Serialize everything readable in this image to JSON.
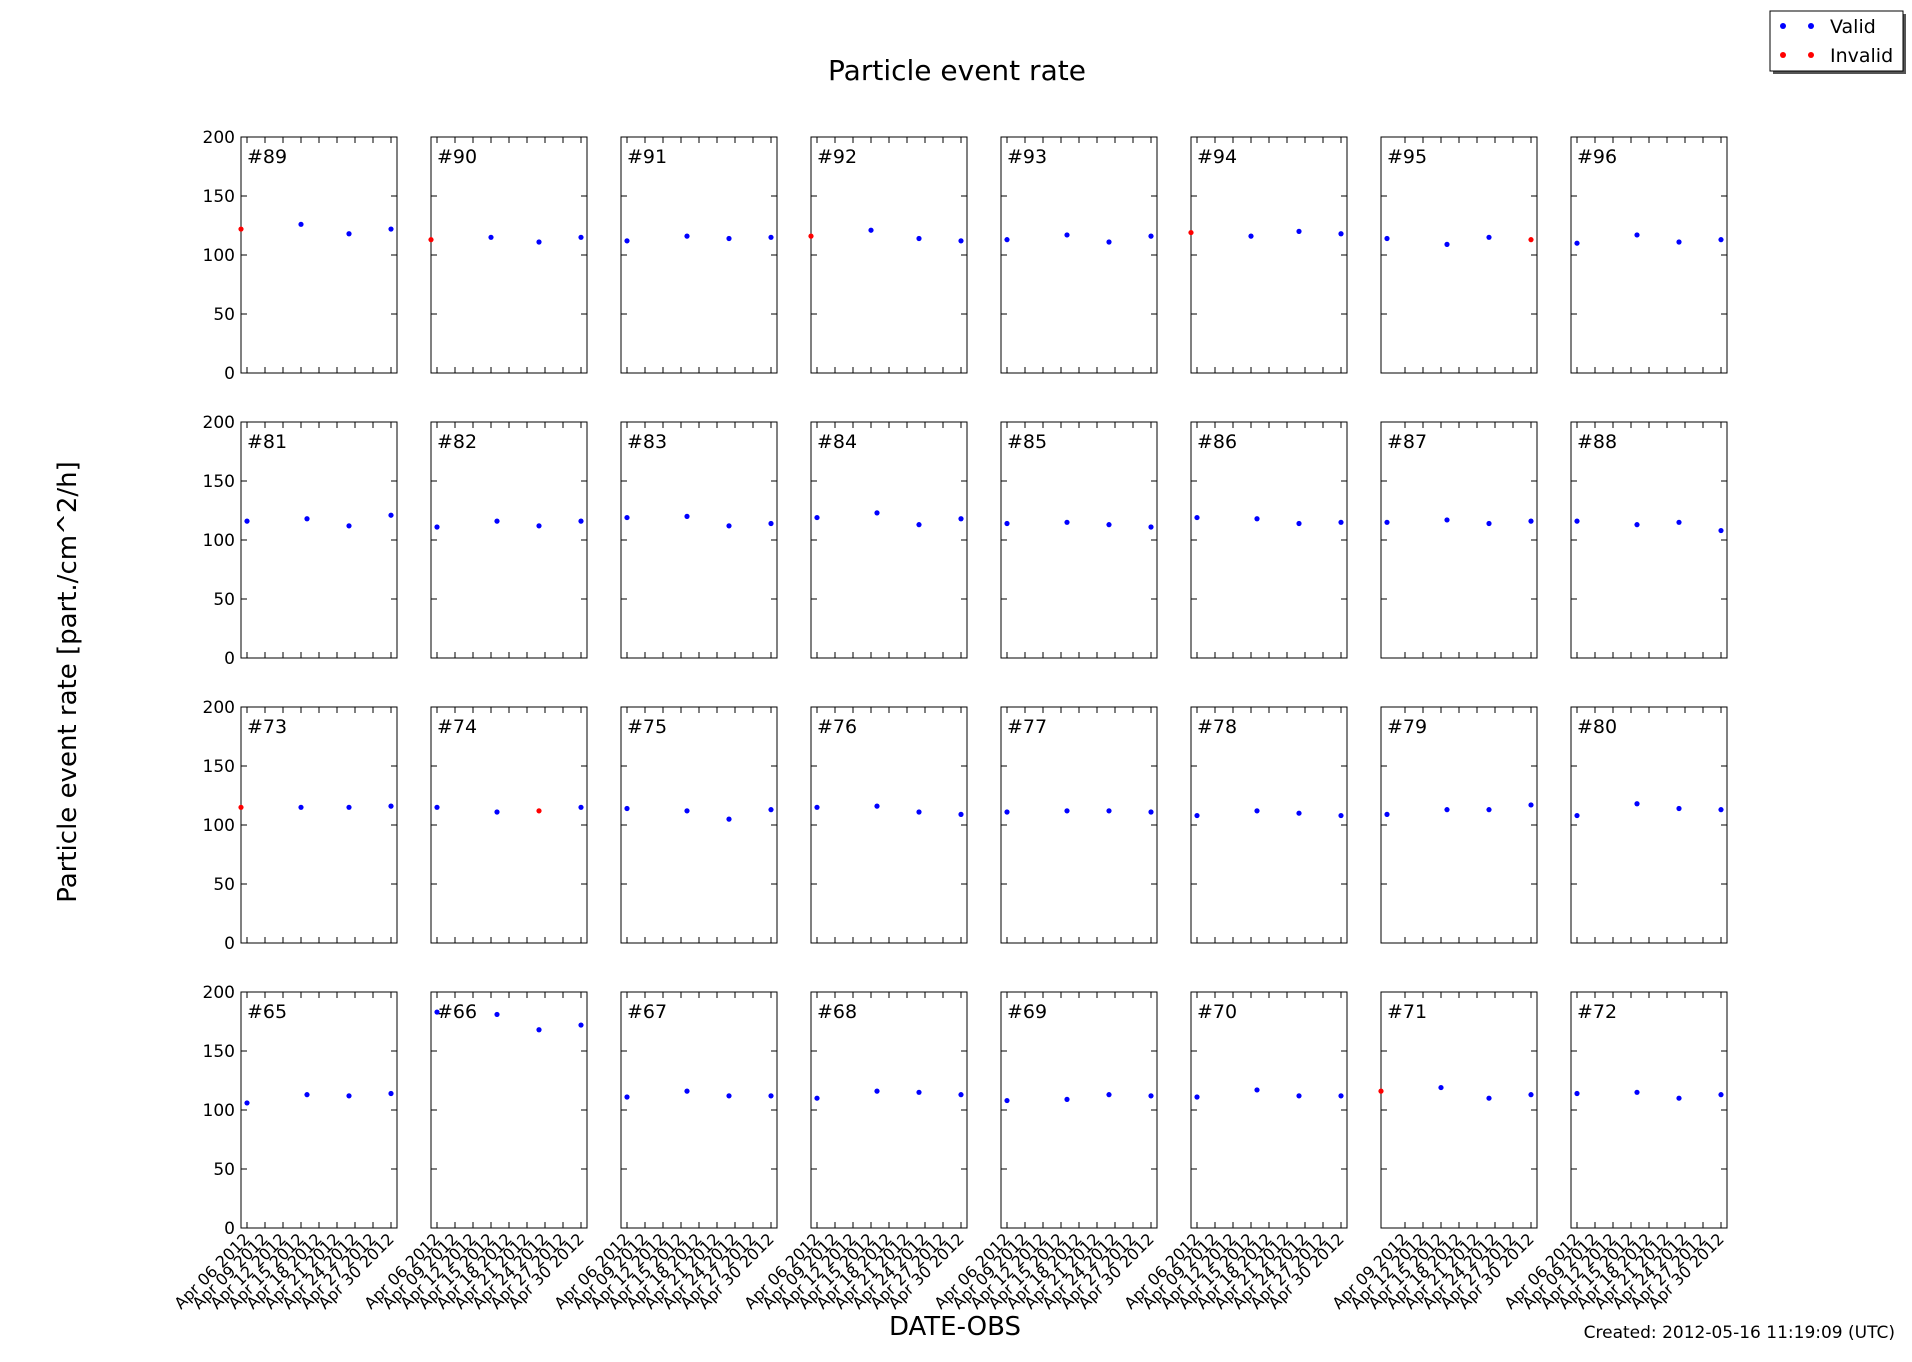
{
  "chart_data": {
    "type": "scatter",
    "title": "Particle event rate",
    "ylabel": "Particle event rate [part./cm^2/h]",
    "xlabel": "DATE-OBS",
    "footer": "Created: 2012-05-16 11:19:09 (UTC)",
    "legend": {
      "placement": "top-right",
      "entries": [
        {
          "label": "Valid",
          "color": "#0000ff"
        },
        {
          "label": "Invalid",
          "color": "#ff0000"
        }
      ]
    },
    "ylim": [
      0,
      200
    ],
    "yticks": [
      "0",
      "50",
      "100",
      "150",
      "200"
    ],
    "grid": false,
    "xrange": [
      "2012-04-05",
      "2012-05-01"
    ],
    "bottom_row_xticks": [
      {
        "dates": [
          "2012-04-06",
          "2012-04-09",
          "2012-04-12",
          "2012-04-15",
          "2012-04-18",
          "2012-04-21",
          "2012-04-24",
          "2012-04-27",
          "2012-04-30"
        ],
        "labels": [
          "Apr 06 2012",
          "Apr 09 2012",
          "Apr 12 2012",
          "Apr 15 2012",
          "Apr 18 2012",
          "Apr 21 2012",
          "Apr 24 2012",
          "Apr 27 2012",
          "Apr 30 2012"
        ]
      },
      {
        "dates": [
          "2012-04-09",
          "2012-04-12",
          "2012-04-15",
          "2012-04-18",
          "2012-04-21",
          "2012-04-24",
          "2012-04-27",
          "2012-04-30"
        ],
        "labels": [
          "Apr 09 2012",
          "Apr 12 2012",
          "Apr 15 2012",
          "Apr 18 2012",
          "Apr 21 2012",
          "Apr 24 2012",
          "Apr 27 2012",
          "Apr 30 2012"
        ]
      }
    ],
    "bottom_row_xtick_set": [
      0,
      0,
      0,
      0,
      0,
      0,
      1,
      0
    ],
    "point_dates": [
      "2012-04-05",
      "2012-04-16",
      "2012-04-24",
      "2012-05-01"
    ],
    "panels": [
      {
        "label": "#89",
        "points": [
          {
            "date": "2012-04-05",
            "y": 122,
            "status": "Invalid"
          },
          {
            "date": "2012-04-15",
            "y": 126,
            "status": "Valid"
          },
          {
            "date": "2012-04-23",
            "y": 118,
            "status": "Valid"
          },
          {
            "date": "2012-04-30",
            "y": 122,
            "status": "Valid"
          }
        ]
      },
      {
        "label": "#90",
        "points": [
          {
            "date": "2012-04-05",
            "y": 113,
            "status": "Invalid"
          },
          {
            "date": "2012-04-15",
            "y": 115,
            "status": "Valid"
          },
          {
            "date": "2012-04-23",
            "y": 111,
            "status": "Valid"
          },
          {
            "date": "2012-04-30",
            "y": 115,
            "status": "Valid"
          }
        ]
      },
      {
        "label": "#91",
        "points": [
          {
            "date": "2012-04-06",
            "y": 112,
            "status": "Valid"
          },
          {
            "date": "2012-04-16",
            "y": 116,
            "status": "Valid"
          },
          {
            "date": "2012-04-23",
            "y": 114,
            "status": "Valid"
          },
          {
            "date": "2012-04-30",
            "y": 115,
            "status": "Valid"
          }
        ]
      },
      {
        "label": "#92",
        "points": [
          {
            "date": "2012-04-05",
            "y": 116,
            "status": "Invalid"
          },
          {
            "date": "2012-04-15",
            "y": 121,
            "status": "Valid"
          },
          {
            "date": "2012-04-23",
            "y": 114,
            "status": "Valid"
          },
          {
            "date": "2012-04-30",
            "y": 112,
            "status": "Valid"
          }
        ]
      },
      {
        "label": "#93",
        "points": [
          {
            "date": "2012-04-06",
            "y": 113,
            "status": "Valid"
          },
          {
            "date": "2012-04-16",
            "y": 117,
            "status": "Valid"
          },
          {
            "date": "2012-04-23",
            "y": 111,
            "status": "Valid"
          },
          {
            "date": "2012-04-30",
            "y": 116,
            "status": "Valid"
          }
        ]
      },
      {
        "label": "#94",
        "points": [
          {
            "date": "2012-04-05",
            "y": 119,
            "status": "Invalid"
          },
          {
            "date": "2012-04-15",
            "y": 116,
            "status": "Valid"
          },
          {
            "date": "2012-04-23",
            "y": 120,
            "status": "Valid"
          },
          {
            "date": "2012-04-30",
            "y": 118,
            "status": "Valid"
          }
        ]
      },
      {
        "label": "#95",
        "points": [
          {
            "date": "2012-04-06",
            "y": 114,
            "status": "Valid"
          },
          {
            "date": "2012-04-16",
            "y": 109,
            "status": "Valid"
          },
          {
            "date": "2012-04-23",
            "y": 115,
            "status": "Valid"
          },
          {
            "date": "2012-04-30",
            "y": 113,
            "status": "Invalid"
          }
        ]
      },
      {
        "label": "#96",
        "points": [
          {
            "date": "2012-04-06",
            "y": 110,
            "status": "Valid"
          },
          {
            "date": "2012-04-16",
            "y": 117,
            "status": "Valid"
          },
          {
            "date": "2012-04-23",
            "y": 111,
            "status": "Valid"
          },
          {
            "date": "2012-04-30",
            "y": 113,
            "status": "Valid"
          }
        ]
      },
      {
        "label": "#81",
        "points": [
          {
            "date": "2012-04-06",
            "y": 116,
            "status": "Valid"
          },
          {
            "date": "2012-04-16",
            "y": 118,
            "status": "Valid"
          },
          {
            "date": "2012-04-23",
            "y": 112,
            "status": "Valid"
          },
          {
            "date": "2012-04-30",
            "y": 121,
            "status": "Valid"
          }
        ]
      },
      {
        "label": "#82",
        "points": [
          {
            "date": "2012-04-06",
            "y": 111,
            "status": "Valid"
          },
          {
            "date": "2012-04-16",
            "y": 116,
            "status": "Valid"
          },
          {
            "date": "2012-04-23",
            "y": 112,
            "status": "Valid"
          },
          {
            "date": "2012-04-30",
            "y": 116,
            "status": "Valid"
          }
        ]
      },
      {
        "label": "#83",
        "points": [
          {
            "date": "2012-04-06",
            "y": 119,
            "status": "Valid"
          },
          {
            "date": "2012-04-16",
            "y": 120,
            "status": "Valid"
          },
          {
            "date": "2012-04-23",
            "y": 112,
            "status": "Valid"
          },
          {
            "date": "2012-04-30",
            "y": 114,
            "status": "Valid"
          }
        ]
      },
      {
        "label": "#84",
        "points": [
          {
            "date": "2012-04-06",
            "y": 119,
            "status": "Valid"
          },
          {
            "date": "2012-04-16",
            "y": 123,
            "status": "Valid"
          },
          {
            "date": "2012-04-23",
            "y": 113,
            "status": "Valid"
          },
          {
            "date": "2012-04-30",
            "y": 118,
            "status": "Valid"
          }
        ]
      },
      {
        "label": "#85",
        "points": [
          {
            "date": "2012-04-06",
            "y": 114,
            "status": "Valid"
          },
          {
            "date": "2012-04-16",
            "y": 115,
            "status": "Valid"
          },
          {
            "date": "2012-04-23",
            "y": 113,
            "status": "Valid"
          },
          {
            "date": "2012-04-30",
            "y": 111,
            "status": "Valid"
          }
        ]
      },
      {
        "label": "#86",
        "points": [
          {
            "date": "2012-04-06",
            "y": 119,
            "status": "Valid"
          },
          {
            "date": "2012-04-16",
            "y": 118,
            "status": "Valid"
          },
          {
            "date": "2012-04-23",
            "y": 114,
            "status": "Valid"
          },
          {
            "date": "2012-04-30",
            "y": 115,
            "status": "Valid"
          }
        ]
      },
      {
        "label": "#87",
        "points": [
          {
            "date": "2012-04-06",
            "y": 115,
            "status": "Valid"
          },
          {
            "date": "2012-04-16",
            "y": 117,
            "status": "Valid"
          },
          {
            "date": "2012-04-23",
            "y": 114,
            "status": "Valid"
          },
          {
            "date": "2012-04-30",
            "y": 116,
            "status": "Valid"
          }
        ]
      },
      {
        "label": "#88",
        "points": [
          {
            "date": "2012-04-06",
            "y": 116,
            "status": "Valid"
          },
          {
            "date": "2012-04-16",
            "y": 113,
            "status": "Valid"
          },
          {
            "date": "2012-04-23",
            "y": 115,
            "status": "Valid"
          },
          {
            "date": "2012-04-30",
            "y": 108,
            "status": "Valid"
          }
        ]
      },
      {
        "label": "#73",
        "points": [
          {
            "date": "2012-04-05",
            "y": 115,
            "status": "Invalid"
          },
          {
            "date": "2012-04-15",
            "y": 115,
            "status": "Valid"
          },
          {
            "date": "2012-04-23",
            "y": 115,
            "status": "Valid"
          },
          {
            "date": "2012-04-30",
            "y": 116,
            "status": "Valid"
          }
        ]
      },
      {
        "label": "#74",
        "points": [
          {
            "date": "2012-04-06",
            "y": 115,
            "status": "Valid"
          },
          {
            "date": "2012-04-16",
            "y": 111,
            "status": "Valid"
          },
          {
            "date": "2012-04-23",
            "y": 112,
            "status": "Invalid"
          },
          {
            "date": "2012-04-30",
            "y": 115,
            "status": "Valid"
          }
        ]
      },
      {
        "label": "#75",
        "points": [
          {
            "date": "2012-04-06",
            "y": 114,
            "status": "Valid"
          },
          {
            "date": "2012-04-16",
            "y": 112,
            "status": "Valid"
          },
          {
            "date": "2012-04-23",
            "y": 105,
            "status": "Valid"
          },
          {
            "date": "2012-04-30",
            "y": 113,
            "status": "Valid"
          }
        ]
      },
      {
        "label": "#76",
        "points": [
          {
            "date": "2012-04-06",
            "y": 115,
            "status": "Valid"
          },
          {
            "date": "2012-04-16",
            "y": 116,
            "status": "Valid"
          },
          {
            "date": "2012-04-23",
            "y": 111,
            "status": "Valid"
          },
          {
            "date": "2012-04-30",
            "y": 109,
            "status": "Valid"
          }
        ]
      },
      {
        "label": "#77",
        "points": [
          {
            "date": "2012-04-06",
            "y": 111,
            "status": "Valid"
          },
          {
            "date": "2012-04-16",
            "y": 112,
            "status": "Valid"
          },
          {
            "date": "2012-04-23",
            "y": 112,
            "status": "Valid"
          },
          {
            "date": "2012-04-30",
            "y": 111,
            "status": "Valid"
          }
        ]
      },
      {
        "label": "#78",
        "points": [
          {
            "date": "2012-04-06",
            "y": 108,
            "status": "Valid"
          },
          {
            "date": "2012-04-16",
            "y": 112,
            "status": "Valid"
          },
          {
            "date": "2012-04-23",
            "y": 110,
            "status": "Valid"
          },
          {
            "date": "2012-04-30",
            "y": 108,
            "status": "Valid"
          }
        ]
      },
      {
        "label": "#79",
        "points": [
          {
            "date": "2012-04-06",
            "y": 109,
            "status": "Valid"
          },
          {
            "date": "2012-04-16",
            "y": 113,
            "status": "Valid"
          },
          {
            "date": "2012-04-23",
            "y": 113,
            "status": "Valid"
          },
          {
            "date": "2012-04-30",
            "y": 117,
            "status": "Valid"
          }
        ]
      },
      {
        "label": "#80",
        "points": [
          {
            "date": "2012-04-06",
            "y": 108,
            "status": "Valid"
          },
          {
            "date": "2012-04-16",
            "y": 118,
            "status": "Valid"
          },
          {
            "date": "2012-04-23",
            "y": 114,
            "status": "Valid"
          },
          {
            "date": "2012-04-30",
            "y": 113,
            "status": "Valid"
          }
        ]
      },
      {
        "label": "#65",
        "points": [
          {
            "date": "2012-04-06",
            "y": 106,
            "status": "Valid"
          },
          {
            "date": "2012-04-16",
            "y": 113,
            "status": "Valid"
          },
          {
            "date": "2012-04-23",
            "y": 112,
            "status": "Valid"
          },
          {
            "date": "2012-04-30",
            "y": 114,
            "status": "Valid"
          }
        ]
      },
      {
        "label": "#66",
        "points": [
          {
            "date": "2012-04-06",
            "y": 183,
            "status": "Valid"
          },
          {
            "date": "2012-04-16",
            "y": 181,
            "status": "Valid"
          },
          {
            "date": "2012-04-23",
            "y": 168,
            "status": "Valid"
          },
          {
            "date": "2012-04-30",
            "y": 172,
            "status": "Valid"
          }
        ]
      },
      {
        "label": "#67",
        "points": [
          {
            "date": "2012-04-06",
            "y": 111,
            "status": "Valid"
          },
          {
            "date": "2012-04-16",
            "y": 116,
            "status": "Valid"
          },
          {
            "date": "2012-04-23",
            "y": 112,
            "status": "Valid"
          },
          {
            "date": "2012-04-30",
            "y": 112,
            "status": "Valid"
          }
        ]
      },
      {
        "label": "#68",
        "points": [
          {
            "date": "2012-04-06",
            "y": 110,
            "status": "Valid"
          },
          {
            "date": "2012-04-16",
            "y": 116,
            "status": "Valid"
          },
          {
            "date": "2012-04-23",
            "y": 115,
            "status": "Valid"
          },
          {
            "date": "2012-04-30",
            "y": 113,
            "status": "Valid"
          }
        ]
      },
      {
        "label": "#69",
        "points": [
          {
            "date": "2012-04-06",
            "y": 108,
            "status": "Valid"
          },
          {
            "date": "2012-04-16",
            "y": 109,
            "status": "Valid"
          },
          {
            "date": "2012-04-23",
            "y": 113,
            "status": "Valid"
          },
          {
            "date": "2012-04-30",
            "y": 112,
            "status": "Valid"
          }
        ]
      },
      {
        "label": "#70",
        "points": [
          {
            "date": "2012-04-06",
            "y": 111,
            "status": "Valid"
          },
          {
            "date": "2012-04-16",
            "y": 117,
            "status": "Valid"
          },
          {
            "date": "2012-04-23",
            "y": 112,
            "status": "Valid"
          },
          {
            "date": "2012-04-30",
            "y": 112,
            "status": "Valid"
          }
        ]
      },
      {
        "label": "#71",
        "points": [
          {
            "date": "2012-04-05",
            "y": 116,
            "status": "Invalid"
          },
          {
            "date": "2012-04-15",
            "y": 119,
            "status": "Valid"
          },
          {
            "date": "2012-04-23",
            "y": 110,
            "status": "Valid"
          },
          {
            "date": "2012-04-30",
            "y": 113,
            "status": "Valid"
          }
        ]
      },
      {
        "label": "#72",
        "points": [
          {
            "date": "2012-04-06",
            "y": 114,
            "status": "Valid"
          },
          {
            "date": "2012-04-16",
            "y": 115,
            "status": "Valid"
          },
          {
            "date": "2012-04-23",
            "y": 110,
            "status": "Valid"
          },
          {
            "date": "2012-04-30",
            "y": 113,
            "status": "Valid"
          }
        ]
      }
    ]
  }
}
